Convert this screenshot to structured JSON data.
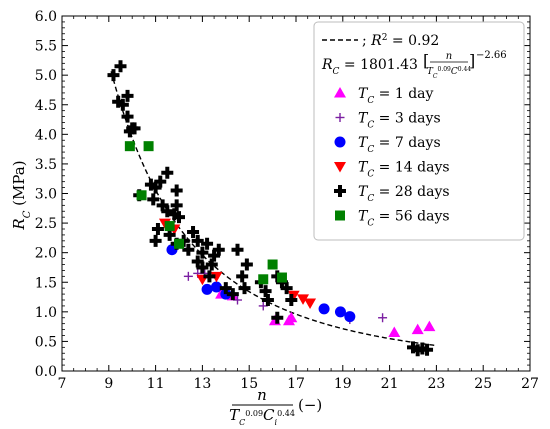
{
  "chart_data": {
    "type": "scatter",
    "title": "",
    "ylabel": "R_C (MPa)",
    "xlabel": "n / (T_C^0.09 C_i^0.44) (−)",
    "xlim": [
      7,
      27
    ],
    "ylim": [
      0,
      6
    ],
    "x_ticks": [
      "7",
      "9",
      "11",
      "13",
      "15",
      "17",
      "19",
      "21",
      "23",
      "25",
      "27"
    ],
    "y_ticks": [
      "0.0",
      "0.5",
      "1.0",
      "1.5",
      "2.0",
      "2.5",
      "3.0",
      "3.5",
      "4.0",
      "4.5",
      "5.0",
      "5.5",
      "6.0"
    ],
    "legend_position": "top-right",
    "fit": {
      "label": "; R² = 0.92",
      "equation": "R_C = 1801.43[n / (T_C^0.09 C^0.44)]^−2.66",
      "coefficient": 1801.43,
      "exponent": -2.66,
      "style": "dashed",
      "color": "#000000"
    },
    "series": [
      {
        "name": "T_C = 1 day",
        "marker": "triangle-up",
        "color": "#ff00ff",
        "points": [
          [
            13.8,
            1.3
          ],
          [
            14.3,
            1.27
          ],
          [
            16.1,
            0.85
          ],
          [
            16.7,
            0.85
          ],
          [
            16.8,
            0.9
          ],
          [
            21.2,
            0.65
          ],
          [
            22.2,
            0.7
          ],
          [
            22.7,
            0.75
          ]
        ]
      },
      {
        "name": "T_C = 3 days",
        "marker": "plus",
        "color": "#7b1fa2",
        "points": [
          [
            12.4,
            1.6
          ],
          [
            12.8,
            1.65
          ],
          [
            13.1,
            1.65
          ],
          [
            14.5,
            1.2
          ],
          [
            15.6,
            1.1
          ],
          [
            19.3,
            0.87
          ],
          [
            20.7,
            0.9
          ]
        ]
      },
      {
        "name": "T_C = 7 days",
        "marker": "circle",
        "color": "#0000ff",
        "points": [
          [
            11.7,
            2.05
          ],
          [
            13.2,
            1.38
          ],
          [
            13.6,
            1.42
          ],
          [
            14.0,
            1.3
          ],
          [
            18.2,
            1.05
          ],
          [
            18.9,
            1.0
          ],
          [
            19.3,
            0.92
          ]
        ]
      },
      {
        "name": "T_C = 14 days",
        "marker": "triangle-down",
        "color": "#ff0000",
        "points": [
          [
            11.4,
            2.5
          ],
          [
            11.8,
            2.4
          ],
          [
            13.0,
            1.55
          ],
          [
            13.6,
            1.6
          ],
          [
            16.9,
            1.28
          ],
          [
            17.3,
            1.22
          ],
          [
            17.6,
            1.15
          ]
        ]
      },
      {
        "name": "T_C = 28 days",
        "marker": "plus-thick",
        "color": "#000000",
        "points": [
          [
            9.2,
            5.0
          ],
          [
            9.5,
            5.15
          ],
          [
            9.4,
            4.55
          ],
          [
            9.6,
            4.5
          ],
          [
            9.8,
            4.65
          ],
          [
            9.8,
            4.3
          ],
          [
            9.9,
            4.05
          ],
          [
            10.0,
            4.1
          ],
          [
            10.1,
            4.1
          ],
          [
            10.3,
            2.97
          ],
          [
            10.8,
            3.15
          ],
          [
            11.0,
            3.1
          ],
          [
            11.2,
            3.2
          ],
          [
            11.5,
            3.35
          ],
          [
            10.9,
            2.9
          ],
          [
            11.3,
            2.8
          ],
          [
            11.5,
            2.7
          ],
          [
            11.8,
            2.65
          ],
          [
            11.9,
            2.8
          ],
          [
            12.0,
            2.6
          ],
          [
            11.9,
            3.05
          ],
          [
            11.1,
            2.4
          ],
          [
            11.0,
            2.2
          ],
          [
            11.6,
            2.3
          ],
          [
            11.9,
            2.15
          ],
          [
            12.2,
            2.2
          ],
          [
            12.4,
            2.05
          ],
          [
            12.6,
            2.35
          ],
          [
            12.8,
            2.2
          ],
          [
            13.0,
            2.0
          ],
          [
            13.2,
            2.15
          ],
          [
            13.5,
            1.95
          ],
          [
            12.8,
            1.85
          ],
          [
            13.0,
            1.75
          ],
          [
            13.4,
            1.8
          ],
          [
            13.3,
            1.6
          ],
          [
            13.7,
            2.05
          ],
          [
            14.0,
            1.4
          ],
          [
            14.3,
            1.3
          ],
          [
            14.5,
            2.05
          ],
          [
            14.7,
            1.6
          ],
          [
            14.8,
            1.4
          ],
          [
            14.9,
            1.8
          ],
          [
            15.5,
            1.5
          ],
          [
            15.7,
            1.35
          ],
          [
            15.8,
            1.2
          ],
          [
            16.2,
            1.6
          ],
          [
            16.4,
            1.5
          ],
          [
            16.6,
            1.4
          ],
          [
            16.8,
            1.2
          ],
          [
            16.2,
            0.9
          ],
          [
            22.0,
            0.4
          ],
          [
            22.2,
            0.35
          ],
          [
            22.4,
            0.38
          ],
          [
            22.6,
            0.36
          ]
        ]
      },
      {
        "name": "T_C = 56 days",
        "marker": "square",
        "color": "#008000",
        "points": [
          [
            9.9,
            3.8
          ],
          [
            10.7,
            3.8
          ],
          [
            10.4,
            2.97
          ],
          [
            11.6,
            2.45
          ],
          [
            12.0,
            2.15
          ],
          [
            15.6,
            1.55
          ],
          [
            16.0,
            1.8
          ],
          [
            16.4,
            1.58
          ]
        ]
      }
    ]
  }
}
